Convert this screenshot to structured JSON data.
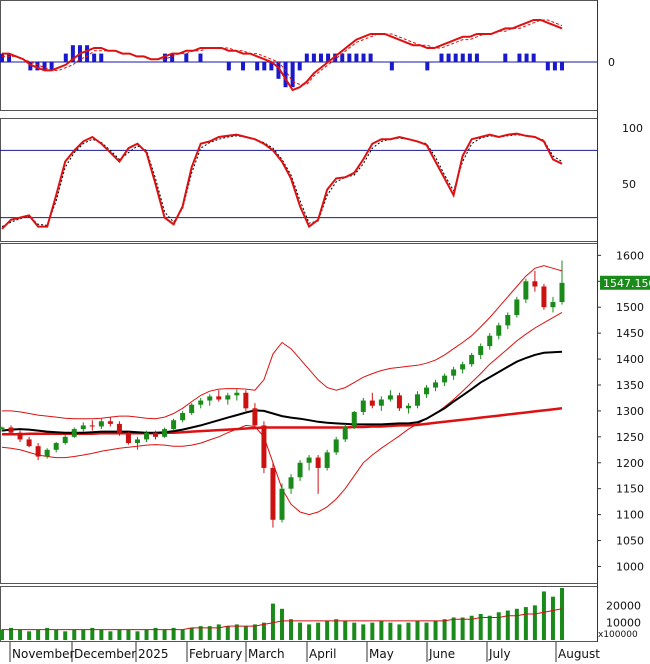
{
  "colors": {
    "up": "#1a8a1a",
    "down": "#cc1111",
    "macd_line": "#dd1111",
    "macd_hist": "#1a1acc",
    "stoch_k": "#dd1111",
    "ref_line": "#1a1a99",
    "ma_short": "#000000",
    "ma_long": "#dd1111",
    "bollinger": "#dd1111",
    "price_badge_bg": "#1a8a1a",
    "price_badge_text": "#ffffff"
  },
  "chart_data": [
    {
      "type": "bar",
      "panel": "macd",
      "y_ticks": [
        "0"
      ],
      "series": [
        {
          "values": [
            3,
            3,
            2,
            1,
            -1,
            -2,
            -3,
            -3,
            -2,
            -1,
            1,
            3,
            4,
            5,
            5,
            4,
            4,
            3,
            3,
            2,
            2,
            1,
            1,
            2,
            3,
            3,
            4,
            4,
            5,
            5,
            5,
            5,
            4,
            4,
            3,
            3,
            2,
            1,
            0,
            -2,
            -6,
            -10,
            -9,
            -7,
            -4,
            -2,
            0,
            2,
            4,
            6,
            8,
            9,
            10,
            10,
            10,
            9,
            8,
            7,
            6,
            6,
            5,
            5,
            6,
            7,
            8,
            9,
            9,
            10,
            10,
            10,
            11,
            12,
            12,
            13,
            14,
            15,
            15,
            14,
            13,
            12
          ]
        },
        {
          "values": [
            2,
            2,
            2,
            1,
            0,
            -1,
            -2,
            -3,
            -3,
            -2,
            -1,
            1,
            2,
            4,
            4,
            4,
            4,
            3,
            3,
            2,
            2,
            1,
            1,
            1,
            2,
            3,
            3,
            4,
            4,
            5,
            5,
            5,
            5,
            4,
            4,
            3,
            3,
            2,
            1,
            0,
            -3,
            -7,
            -8,
            -8,
            -5,
            -3,
            -1,
            1,
            3,
            5,
            7,
            8,
            9,
            10,
            10,
            10,
            9,
            8,
            7,
            6,
            6,
            5,
            5,
            6,
            7,
            8,
            8,
            9,
            10,
            10,
            11,
            11,
            12,
            12,
            13,
            14,
            15,
            15,
            14,
            13
          ]
        }
      ],
      "histogram": [
        1,
        1,
        0,
        0,
        -1,
        -1,
        -1,
        -1,
        0,
        1,
        2,
        2,
        2,
        1,
        1,
        0,
        0,
        0,
        0,
        0,
        0,
        0,
        0,
        1,
        1,
        0,
        1,
        0,
        1,
        0,
        0,
        0,
        -1,
        0,
        -1,
        0,
        -1,
        -1,
        -1,
        -2,
        -3,
        -3,
        -1,
        1,
        1,
        1,
        1,
        1,
        1,
        1,
        1,
        1,
        1,
        0,
        0,
        -1,
        0,
        0,
        0,
        0,
        -1,
        0,
        1,
        1,
        1,
        1,
        1,
        1,
        0,
        0,
        0,
        1,
        0,
        1,
        1,
        1,
        0,
        -1,
        -1,
        -1
      ]
    },
    {
      "type": "line",
      "panel": "stochastic",
      "y_ticks": [
        "100",
        "50"
      ],
      "ylim": [
        0,
        100
      ],
      "ref_levels": [
        80,
        20
      ],
      "series": [
        {
          "values": [
            10,
            18,
            20,
            22,
            12,
            12,
            40,
            70,
            80,
            88,
            92,
            86,
            78,
            70,
            82,
            86,
            78,
            50,
            20,
            14,
            30,
            65,
            86,
            88,
            92,
            93,
            94,
            92,
            90,
            86,
            80,
            70,
            55,
            30,
            12,
            18,
            45,
            55,
            56,
            60,
            72,
            86,
            90,
            90,
            92,
            90,
            88,
            85,
            70,
            55,
            40,
            75,
            90,
            92,
            94,
            92,
            94,
            95,
            93,
            92,
            88,
            72,
            68
          ]
        },
        {
          "values": [
            12,
            16,
            19,
            21,
            14,
            13,
            35,
            65,
            78,
            86,
            90,
            87,
            80,
            72,
            78,
            84,
            80,
            55,
            25,
            16,
            28,
            60,
            82,
            87,
            90,
            92,
            93,
            92,
            90,
            87,
            82,
            72,
            58,
            35,
            15,
            17,
            40,
            52,
            56,
            58,
            68,
            82,
            88,
            90,
            91,
            90,
            88,
            86,
            74,
            58,
            44,
            70,
            86,
            91,
            93,
            92,
            93,
            94,
            93,
            92,
            89,
            75,
            70
          ]
        }
      ]
    },
    {
      "type": "line",
      "panel": "price",
      "y_ticks": [
        "1600",
        "1550",
        "1500",
        "1450",
        "1400",
        "1350",
        "1300",
        "1250",
        "1200",
        "1150",
        "1100",
        "1050",
        "1000"
      ],
      "ylim": [
        970,
        1620
      ],
      "price_badge": "1547.150",
      "candles": [
        [
          1265,
          1270,
          1260,
          1268
        ],
        [
          1268,
          1272,
          1255,
          1258
        ],
        [
          1258,
          1262,
          1240,
          1245
        ],
        [
          1245,
          1250,
          1230,
          1232
        ],
        [
          1232,
          1238,
          1205,
          1212
        ],
        [
          1212,
          1228,
          1208,
          1225
        ],
        [
          1225,
          1240,
          1220,
          1238
        ],
        [
          1238,
          1255,
          1235,
          1250
        ],
        [
          1250,
          1268,
          1248,
          1265
        ],
        [
          1265,
          1278,
          1260,
          1272
        ],
        [
          1272,
          1282,
          1262,
          1270
        ],
        [
          1270,
          1285,
          1265,
          1280
        ],
        [
          1280,
          1288,
          1270,
          1275
        ],
        [
          1275,
          1280,
          1252,
          1255
        ],
        [
          1255,
          1260,
          1235,
          1238
        ],
        [
          1238,
          1250,
          1225,
          1245
        ],
        [
          1245,
          1262,
          1240,
          1258
        ],
        [
          1258,
          1262,
          1245,
          1250
        ],
        [
          1250,
          1268,
          1248,
          1265
        ],
        [
          1265,
          1285,
          1262,
          1282
        ],
        [
          1282,
          1300,
          1278,
          1296
        ],
        [
          1296,
          1315,
          1292,
          1312
        ],
        [
          1312,
          1325,
          1305,
          1320
        ],
        [
          1320,
          1332,
          1310,
          1328
        ],
        [
          1328,
          1340,
          1318,
          1322
        ],
        [
          1322,
          1335,
          1312,
          1330
        ],
        [
          1330,
          1342,
          1320,
          1335
        ],
        [
          1335,
          1340,
          1300,
          1305
        ],
        [
          1305,
          1315,
          1270,
          1272
        ],
        [
          1272,
          1280,
          1180,
          1190
        ],
        [
          1190,
          1200,
          1075,
          1090
        ],
        [
          1090,
          1160,
          1085,
          1150
        ],
        [
          1150,
          1178,
          1140,
          1172
        ],
        [
          1172,
          1205,
          1165,
          1200
        ],
        [
          1200,
          1215,
          1185,
          1210
        ],
        [
          1210,
          1215,
          1140,
          1190
        ],
        [
          1190,
          1225,
          1185,
          1220
        ],
        [
          1220,
          1250,
          1215,
          1245
        ],
        [
          1245,
          1275,
          1240,
          1270
        ],
        [
          1270,
          1300,
          1265,
          1298
        ],
        [
          1298,
          1325,
          1292,
          1320
        ],
        [
          1320,
          1335,
          1305,
          1310
        ],
        [
          1310,
          1328,
          1300,
          1322
        ],
        [
          1322,
          1340,
          1318,
          1330
        ],
        [
          1330,
          1335,
          1300,
          1305
        ],
        [
          1305,
          1315,
          1295,
          1310
        ],
        [
          1310,
          1338,
          1305,
          1332
        ],
        [
          1332,
          1350,
          1325,
          1345
        ],
        [
          1345,
          1360,
          1338,
          1355
        ],
        [
          1355,
          1372,
          1348,
          1368
        ],
        [
          1368,
          1385,
          1360,
          1380
        ],
        [
          1380,
          1395,
          1372,
          1390
        ],
        [
          1390,
          1412,
          1385,
          1408
        ],
        [
          1408,
          1430,
          1400,
          1425
        ],
        [
          1425,
          1450,
          1418,
          1445
        ],
        [
          1445,
          1470,
          1438,
          1465
        ],
        [
          1465,
          1490,
          1458,
          1485
        ],
        [
          1485,
          1520,
          1480,
          1515
        ],
        [
          1515,
          1555,
          1508,
          1550
        ],
        [
          1550,
          1570,
          1530,
          1540
        ],
        [
          1540,
          1545,
          1495,
          1500
        ],
        [
          1500,
          1520,
          1490,
          1510
        ],
        [
          1510,
          1590,
          1505,
          1547
        ]
      ],
      "ma_short": [
        1262,
        1264,
        1265,
        1264,
        1262,
        1260,
        1259,
        1258,
        1258,
        1258,
        1259,
        1260,
        1260,
        1260,
        1260,
        1259,
        1258,
        1258,
        1259,
        1261,
        1264,
        1268,
        1272,
        1277,
        1282,
        1287,
        1292,
        1297,
        1301,
        1300,
        1295,
        1290,
        1287,
        1285,
        1282,
        1279,
        1277,
        1276,
        1275,
        1274,
        1274,
        1274,
        1274,
        1275,
        1276,
        1276,
        1278,
        1285,
        1295,
        1305,
        1318,
        1330,
        1342,
        1355,
        1365,
        1375,
        1385,
        1395,
        1402,
        1408,
        1412,
        1413,
        1414
      ],
      "ma_long": [
        1255,
        1255,
        1255,
        1256,
        1256,
        1256,
        1256,
        1256,
        1256,
        1256,
        1256,
        1257,
        1257,
        1257,
        1257,
        1257,
        1257,
        1257,
        1258,
        1258,
        1259,
        1260,
        1261,
        1262,
        1263,
        1264,
        1265,
        1266,
        1267,
        1268,
        1268,
        1268,
        1268,
        1268,
        1268,
        1268,
        1268,
        1268,
        1268,
        1269,
        1269,
        1270,
        1270,
        1271,
        1272,
        1272,
        1273,
        1275,
        1277,
        1279,
        1281,
        1283,
        1285,
        1287,
        1289,
        1291,
        1293,
        1295,
        1297,
        1299,
        1301,
        1303,
        1305
      ],
      "bb_upper": [
        1300,
        1300,
        1298,
        1295,
        1292,
        1290,
        1288,
        1286,
        1285,
        1285,
        1285,
        1286,
        1288,
        1290,
        1290,
        1288,
        1286,
        1285,
        1288,
        1295,
        1305,
        1318,
        1330,
        1338,
        1342,
        1343,
        1343,
        1342,
        1340,
        1360,
        1410,
        1432,
        1420,
        1400,
        1380,
        1360,
        1345,
        1340,
        1345,
        1355,
        1365,
        1372,
        1378,
        1382,
        1384,
        1386,
        1388,
        1392,
        1398,
        1408,
        1420,
        1432,
        1445,
        1462,
        1480,
        1500,
        1520,
        1540,
        1560,
        1575,
        1580,
        1575,
        1570
      ],
      "bb_lower": [
        1230,
        1228,
        1225,
        1220,
        1215,
        1212,
        1210,
        1210,
        1212,
        1215,
        1218,
        1222,
        1225,
        1228,
        1230,
        1232,
        1234,
        1235,
        1234,
        1232,
        1232,
        1234,
        1238,
        1244,
        1250,
        1258,
        1265,
        1272,
        1270,
        1250,
        1200,
        1150,
        1120,
        1105,
        1100,
        1105,
        1115,
        1130,
        1150,
        1175,
        1200,
        1215,
        1228,
        1240,
        1252,
        1265,
        1275,
        1285,
        1295,
        1308,
        1322,
        1338,
        1355,
        1372,
        1390,
        1405,
        1420,
        1435,
        1448,
        1460,
        1470,
        1480,
        1490
      ]
    },
    {
      "type": "bar",
      "panel": "volume",
      "y_ticks": [
        "20000",
        "10000"
      ],
      "unit": "x100000",
      "values": [
        6,
        7,
        6,
        5,
        6,
        7,
        6,
        5,
        6,
        6,
        7,
        6,
        5,
        6,
        6,
        5,
        6,
        7,
        6,
        7,
        6,
        7,
        8,
        8,
        9,
        8,
        9,
        8,
        9,
        10,
        21,
        18,
        12,
        10,
        9,
        10,
        11,
        12,
        11,
        10,
        9,
        10,
        11,
        10,
        9,
        10,
        11,
        10,
        11,
        12,
        13,
        13,
        14,
        15,
        14,
        16,
        17,
        18,
        19,
        20,
        28,
        25,
        30
      ],
      "ma": [
        6,
        6,
        6,
        6,
        6,
        6,
        6,
        6,
        6,
        6,
        6,
        6,
        6,
        6,
        6,
        6,
        6,
        6,
        6,
        6,
        6,
        7,
        7,
        7,
        7,
        8,
        8,
        8,
        8,
        9,
        10,
        11,
        11,
        11,
        11,
        11,
        11,
        11,
        11,
        11,
        11,
        11,
        11,
        11,
        11,
        11,
        11,
        11,
        11,
        11,
        12,
        12,
        12,
        13,
        13,
        13,
        14,
        14,
        15,
        15,
        16,
        17,
        18
      ]
    },
    {
      "type": "table",
      "panel": "x_axis",
      "months": [
        "November",
        "December",
        "2025",
        "February",
        "March",
        "April",
        "May",
        "June",
        "July",
        "August"
      ]
    }
  ]
}
